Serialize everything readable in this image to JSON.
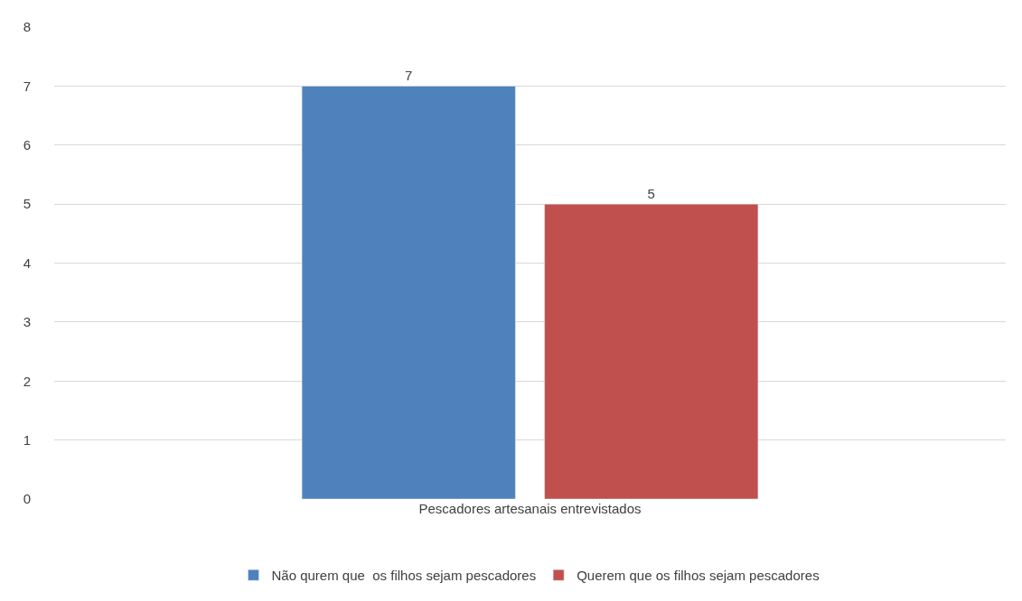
{
  "chart_data": {
    "type": "bar",
    "categories": [
      "Pescadores artesanais entrevistados"
    ],
    "series": [
      {
        "name": "Não qurem que  os filhos sejam pescadores",
        "color": "#4f81bd",
        "values": [
          7
        ]
      },
      {
        "name": "Querem que os filhos sejam pescadores",
        "color": "#c0504d",
        "values": [
          5
        ]
      }
    ],
    "ylim": [
      0,
      8
    ],
    "yticks": [
      0,
      1,
      2,
      3,
      4,
      5,
      6,
      7,
      8
    ],
    "grid": "y",
    "legend": "bottom",
    "data_labels": true
  }
}
